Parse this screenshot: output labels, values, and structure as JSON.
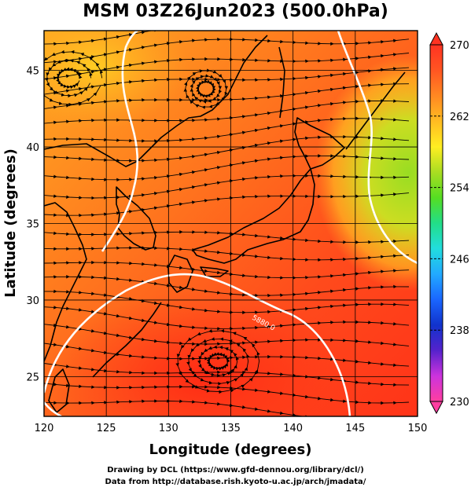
{
  "title": "MSM 03Z26Jun2023 (500.0hPa)",
  "axes": {
    "xlabel": "Longitude (degrees)",
    "ylabel": "Latitude  (degrees)",
    "x_ticks": [
      "120",
      "125",
      "130",
      "135",
      "140",
      "145",
      "150"
    ],
    "y_ticks": [
      "25",
      "30",
      "35",
      "40",
      "45"
    ],
    "xlim": [
      120,
      150
    ],
    "ylim": [
      22.4,
      47.6
    ]
  },
  "colorbar": {
    "min": 230,
    "max": 270,
    "tick_labels": [
      "270",
      "262",
      "254",
      "246",
      "238",
      "230"
    ],
    "colors": [
      "#ff3ea0",
      "#cc33dd",
      "#5522cc",
      "#1133cc",
      "#1a66ff",
      "#22aaff",
      "#22dddd",
      "#22dd88",
      "#55dd22",
      "#aadd22",
      "#ffee22",
      "#ffbb22",
      "#ff8822",
      "#ff5522",
      "#ff3322"
    ]
  },
  "contours": [
    {
      "label": "5880.0",
      "color": "#ffffff"
    }
  ],
  "footer": {
    "line1": "Drawing by DCL (https://www.gfd-dennou.org/library/dcl/)",
    "line2": "Data from http://database.rish.kyoto-u.ac.jp/arch/jmadata/"
  },
  "colors": {
    "coastline": "#000000",
    "grid": "#000000",
    "contour": "#ffffff",
    "streamline": "#000000"
  }
}
